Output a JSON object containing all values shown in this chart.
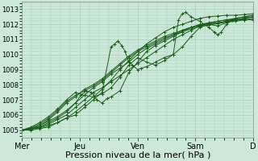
{
  "background_color": "#cce8d8",
  "grid_color": "#aaccb8",
  "line_color": "#1a5c1a",
  "marker_color": "#1a5c1a",
  "ylim": [
    1004.5,
    1013.5
  ],
  "xlim": [
    0,
    130
  ],
  "yticks": [
    1005,
    1006,
    1007,
    1008,
    1009,
    1010,
    1011,
    1012,
    1013
  ],
  "xtick_positions": [
    0,
    32.5,
    65,
    97.5,
    130
  ],
  "xtick_labels": [
    "Mer",
    "Jeu",
    "Ven",
    "Sam",
    "D"
  ],
  "xlabel": "Pression niveau de la mer( hPa )",
  "xlabel_fontsize": 8,
  "ytick_fontsize": 6,
  "xtick_fontsize": 7,
  "figsize": [
    3.2,
    2.0
  ],
  "dpi": 100,
  "series": [
    [
      0,
      1005.0,
      5,
      1005.1,
      10,
      1005.2,
      15,
      1005.4,
      20,
      1005.7,
      25,
      1006.0,
      30,
      1006.5,
      35,
      1007.0,
      40,
      1007.5,
      45,
      1007.8,
      50,
      1008.2,
      55,
      1008.6,
      60,
      1009.0,
      65,
      1009.4,
      70,
      1009.8,
      75,
      1010.2,
      80,
      1010.6,
      85,
      1011.0,
      90,
      1011.3,
      95,
      1011.6,
      100,
      1011.9,
      105,
      1012.1,
      110,
      1012.2,
      115,
      1012.3,
      120,
      1012.4,
      125,
      1012.5,
      130,
      1012.6
    ],
    [
      0,
      1005.0,
      5,
      1005.1,
      10,
      1005.3,
      15,
      1005.6,
      20,
      1005.9,
      25,
      1006.3,
      30,
      1006.8,
      35,
      1007.3,
      40,
      1007.8,
      45,
      1008.2,
      50,
      1008.7,
      55,
      1009.1,
      60,
      1009.5,
      65,
      1010.0,
      70,
      1010.4,
      75,
      1010.7,
      80,
      1011.0,
      85,
      1011.3,
      90,
      1011.6,
      95,
      1011.8,
      100,
      1012.0,
      105,
      1012.1,
      110,
      1012.2,
      115,
      1012.3,
      120,
      1012.3,
      125,
      1012.3,
      130,
      1012.3
    ],
    [
      0,
      1005.0,
      5,
      1005.05,
      10,
      1005.15,
      15,
      1005.3,
      20,
      1005.5,
      25,
      1005.8,
      30,
      1006.2,
      35,
      1006.7,
      40,
      1007.2,
      45,
      1007.7,
      50,
      1008.3,
      55,
      1009.0,
      60,
      1009.6,
      65,
      1010.2,
      70,
      1010.7,
      75,
      1011.1,
      80,
      1011.5,
      85,
      1011.8,
      90,
      1012.0,
      95,
      1012.2,
      100,
      1012.4,
      105,
      1012.5,
      110,
      1012.55,
      115,
      1012.6,
      120,
      1012.6,
      125,
      1012.65,
      130,
      1012.7
    ],
    [
      0,
      1005.0,
      5,
      1005.2,
      10,
      1005.5,
      15,
      1005.9,
      20,
      1006.4,
      25,
      1007.0,
      30,
      1007.5,
      35,
      1007.3,
      40,
      1007.2,
      45,
      1007.4,
      50,
      1007.8,
      55,
      1008.5,
      60,
      1009.3,
      65,
      1009.8,
      70,
      1009.5,
      75,
      1009.3,
      80,
      1009.6,
      85,
      1010.0,
      90,
      1010.5,
      95,
      1011.2,
      100,
      1011.8,
      105,
      1012.0,
      110,
      1011.9,
      115,
      1012.1,
      120,
      1012.3,
      125,
      1012.4,
      130,
      1012.5
    ],
    [
      0,
      1005.0,
      5,
      1005.0,
      10,
      1005.1,
      15,
      1005.2,
      20,
      1005.5,
      25,
      1005.8,
      30,
      1006.0,
      35,
      1006.5,
      40,
      1007.0,
      45,
      1007.5,
      50,
      1010.5,
      52,
      1010.7,
      54,
      1010.9,
      56,
      1010.6,
      58,
      1010.2,
      60,
      1009.5,
      62,
      1009.3,
      65,
      1009.0,
      67,
      1009.1,
      70,
      1009.2,
      75,
      1009.5,
      80,
      1009.8,
      85,
      1010.0,
      88,
      1012.3,
      90,
      1012.7,
      92,
      1012.8,
      95,
      1012.5,
      100,
      1012.2,
      105,
      1011.8,
      108,
      1011.5,
      110,
      1011.3,
      112,
      1011.5,
      115,
      1012.0,
      118,
      1012.3,
      120,
      1012.4,
      125,
      1012.5,
      130,
      1012.6
    ],
    [
      0,
      1005.0,
      5,
      1005.1,
      10,
      1005.2,
      15,
      1005.5,
      20,
      1005.8,
      25,
      1006.2,
      30,
      1006.8,
      33,
      1007.3,
      36,
      1007.6,
      39,
      1007.5,
      42,
      1007.0,
      45,
      1006.8,
      48,
      1007.1,
      50,
      1007.2,
      55,
      1007.6,
      60,
      1008.8,
      65,
      1009.5,
      70,
      1010.2,
      75,
      1010.6,
      80,
      1010.9,
      85,
      1011.2,
      90,
      1011.5,
      95,
      1011.8,
      100,
      1011.9,
      105,
      1012.0,
      110,
      1012.1,
      115,
      1012.2,
      120,
      1012.3,
      125,
      1012.4,
      130,
      1012.5
    ],
    [
      0,
      1005.0,
      5,
      1005.1,
      10,
      1005.3,
      15,
      1005.7,
      20,
      1006.2,
      25,
      1006.8,
      30,
      1007.2,
      35,
      1007.7,
      40,
      1008.0,
      45,
      1008.4,
      50,
      1008.9,
      55,
      1009.4,
      60,
      1009.9,
      65,
      1010.3,
      70,
      1010.6,
      75,
      1010.9,
      80,
      1011.2,
      85,
      1011.4,
      90,
      1011.6,
      95,
      1011.8,
      100,
      1011.95,
      105,
      1012.05,
      110,
      1012.1,
      115,
      1012.2,
      120,
      1012.3,
      125,
      1012.4,
      130,
      1012.5
    ],
    [
      0,
      1005.0,
      5,
      1005.15,
      10,
      1005.4,
      15,
      1005.8,
      20,
      1006.3,
      25,
      1006.9,
      30,
      1007.3,
      35,
      1007.6,
      40,
      1007.9,
      45,
      1008.3,
      50,
      1008.8,
      55,
      1009.3,
      60,
      1009.8,
      65,
      1010.2,
      70,
      1010.5,
      75,
      1010.8,
      80,
      1011.1,
      85,
      1011.3,
      90,
      1011.5,
      95,
      1011.7,
      100,
      1011.85,
      105,
      1011.95,
      110,
      1012.05,
      115,
      1012.15,
      120,
      1012.2,
      125,
      1012.3,
      130,
      1012.4
    ]
  ]
}
